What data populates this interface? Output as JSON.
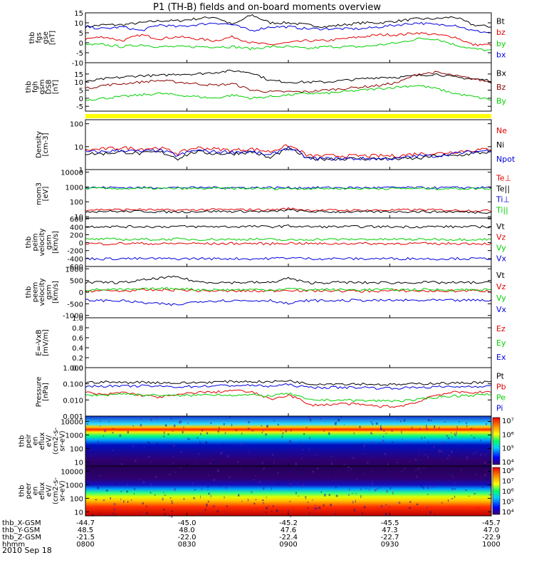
{
  "title": "P1 (TH-B) fields and on-board moments overview",
  "date": "2010 Sep 18",
  "colors": {
    "black": "#000000",
    "red": "#e00000",
    "green": "#00d000",
    "blue": "#0000dd",
    "darkred": "#8b0000",
    "yellow": "#ffff00"
  },
  "chart_data": [
    {
      "id": "fgs",
      "type": "line",
      "ylabel": [
        "thb",
        "fgs",
        "gse",
        "[nT]"
      ],
      "ylim": [
        -10,
        15
      ],
      "yticks": [
        -10,
        -5,
        0,
        5,
        10,
        15
      ],
      "legend": [
        {
          "name": "Bt",
          "color": "black"
        },
        {
          "name": "bz",
          "color": "red"
        },
        {
          "name": "by",
          "color": "green"
        },
        {
          "name": "bx",
          "color": "blue"
        }
      ],
      "series": [
        {
          "name": "Bt",
          "color": "black",
          "values": [
            8,
            9,
            9,
            10,
            11,
            11,
            12,
            13,
            9,
            14,
            10,
            10,
            9,
            8,
            9,
            10,
            10,
            11,
            12,
            12,
            13,
            9,
            8
          ]
        },
        {
          "name": "bz",
          "color": "red",
          "values": [
            2,
            3,
            1,
            4,
            2,
            3,
            2,
            1,
            3,
            0,
            -1,
            0,
            1,
            1,
            2,
            3,
            4,
            4,
            5,
            4,
            3,
            -1,
            -1
          ]
        },
        {
          "name": "by",
          "color": "green",
          "values": [
            -1,
            -1,
            -2,
            -1,
            -2,
            -2,
            -2,
            -2,
            -2,
            -3,
            -2,
            -2,
            -3,
            -2,
            -2,
            -2,
            -1,
            0,
            2,
            2,
            -1,
            -3,
            -4
          ]
        },
        {
          "name": "bx",
          "color": "blue",
          "values": [
            8,
            7,
            8,
            6,
            9,
            8,
            9,
            10,
            9,
            6,
            8,
            8,
            7,
            7,
            7,
            7,
            8,
            9,
            10,
            9,
            9,
            6,
            5
          ]
        }
      ]
    },
    {
      "id": "fgh",
      "type": "line",
      "ylabel": [
        "thb",
        "fgh",
        "gsm",
        "DSB",
        "[nT]"
      ],
      "ylim": [
        -8,
        22
      ],
      "yticks": [
        -5,
        0,
        5,
        10,
        15
      ],
      "legend": [
        {
          "name": "Bx",
          "color": "black"
        },
        {
          "name": "Bz",
          "color": "darkred"
        },
        {
          "name": "By",
          "color": "green"
        }
      ],
      "series": [
        {
          "name": "Bx",
          "color": "black",
          "values": [
            10,
            12,
            13,
            14,
            14,
            15,
            15,
            16,
            17,
            16,
            11,
            10,
            10,
            10,
            11,
            12,
            13,
            13,
            14,
            15,
            13,
            12,
            11
          ]
        },
        {
          "name": "Bz",
          "color": "darkred",
          "values": [
            6,
            8,
            9,
            10,
            11,
            10,
            9,
            8,
            9,
            5,
            4,
            4,
            4,
            5,
            6,
            7,
            8,
            10,
            15,
            16,
            14,
            12,
            10
          ]
        },
        {
          "name": "By",
          "color": "green",
          "values": [
            -1,
            0,
            1,
            2,
            3,
            2,
            1,
            0,
            2,
            0,
            1,
            2,
            3,
            3,
            4,
            5,
            6,
            7,
            8,
            6,
            3,
            1,
            -1
          ]
        }
      ]
    },
    {
      "id": "density",
      "type": "line",
      "scale": "log",
      "ylabel": [
        "Density",
        "[cm-3]"
      ],
      "ylim": [
        1,
        150
      ],
      "yticks": [
        1,
        10,
        100
      ],
      "ytick_labels": [
        "1",
        "10",
        "100"
      ],
      "legend": [
        {
          "name": "Ne",
          "color": "red"
        },
        {
          "name": "Ni",
          "color": "black"
        },
        {
          "name": "Npot",
          "color": "blue"
        }
      ],
      "series": [
        {
          "name": "Ne",
          "color": "red",
          "values": [
            7,
            8,
            9,
            8,
            9,
            5,
            9,
            8,
            7,
            8,
            6,
            11,
            4,
            4,
            4,
            4,
            4,
            4,
            5,
            5,
            6,
            7,
            8
          ]
        },
        {
          "name": "Ni",
          "color": "black",
          "values": [
            5,
            5,
            6,
            5,
            6,
            3,
            6,
            5,
            5,
            6,
            3,
            8,
            3,
            3,
            3,
            3,
            3,
            3,
            3,
            4,
            4,
            5,
            6
          ]
        },
        {
          "name": "Npot",
          "color": "blue",
          "values": [
            6,
            6,
            7,
            6,
            7,
            4,
            7,
            6,
            6,
            6,
            4,
            9,
            3,
            3,
            3,
            3,
            3,
            3,
            4,
            4,
            5,
            6,
            7
          ]
        }
      ]
    },
    {
      "id": "temp",
      "type": "line",
      "scale": "log",
      "ylabel": [
        "mom3",
        "[eV]"
      ],
      "ylim": [
        8,
        15000
      ],
      "yticks": [
        10,
        100,
        1000,
        10000
      ],
      "ytick_labels": [
        "10",
        "100",
        "1000",
        "10000"
      ],
      "legend": [
        {
          "name": "Te⊥",
          "color": "red"
        },
        {
          "name": "Te||",
          "color": "black"
        },
        {
          "name": "Ti⊥",
          "color": "blue"
        },
        {
          "name": "Ti||",
          "color": "green"
        }
      ],
      "series": [
        {
          "name": "Te⊥",
          "color": "red",
          "values": [
            28,
            30,
            29,
            30,
            28,
            27,
            29,
            30,
            29,
            30,
            28,
            35,
            28,
            27,
            27,
            27,
            27,
            28,
            29,
            28,
            27,
            26,
            25
          ]
        },
        {
          "name": "Te||",
          "color": "black",
          "values": [
            22,
            23,
            22,
            23,
            21,
            21,
            22,
            23,
            22,
            23,
            21,
            28,
            22,
            21,
            21,
            21,
            21,
            22,
            22,
            21,
            21,
            20,
            20
          ]
        },
        {
          "name": "Ti⊥",
          "color": "blue",
          "values": [
            900,
            920,
            910,
            900,
            920,
            910,
            900,
            930,
            910,
            900,
            920,
            900,
            900,
            910,
            900,
            890,
            900,
            910,
            900,
            890,
            900,
            910,
            900
          ]
        },
        {
          "name": "Ti||",
          "color": "green",
          "values": [
            800,
            810,
            790,
            800,
            780,
            800,
            790,
            800,
            810,
            800,
            790,
            800,
            790,
            800,
            790,
            780,
            800,
            790,
            800,
            790,
            780,
            790,
            800
          ]
        }
      ]
    },
    {
      "id": "peim",
      "type": "line",
      "ylabel": [
        "thb",
        "peim",
        "velocity",
        "gsm",
        "[km/s]"
      ],
      "ylim": [
        -600,
        620
      ],
      "yticks": [
        -600,
        -400,
        -200,
        0,
        200,
        400,
        600
      ],
      "legend": [
        {
          "name": "Vt",
          "color": "black"
        },
        {
          "name": "Vz",
          "color": "red"
        },
        {
          "name": "Vy",
          "color": "green"
        },
        {
          "name": "Vx",
          "color": "blue"
        }
      ],
      "series": [
        {
          "name": "Vt",
          "color": "black",
          "values": [
            400,
            410,
            400,
            405,
            400,
            410,
            400,
            405,
            400,
            410,
            400,
            420,
            400,
            400,
            400,
            405,
            400,
            400,
            400,
            405,
            400,
            400,
            400
          ]
        },
        {
          "name": "Vz",
          "color": "red",
          "values": [
            -20,
            -30,
            -20,
            -20,
            -30,
            -20,
            -20,
            -30,
            -20,
            -20,
            -30,
            -10,
            -20,
            -30,
            -20,
            -20,
            -30,
            -20,
            -20,
            -30,
            -20,
            -20,
            -30
          ]
        },
        {
          "name": "Vy",
          "color": "green",
          "values": [
            80,
            90,
            80,
            85,
            80,
            90,
            80,
            85,
            80,
            90,
            80,
            60,
            80,
            85,
            80,
            90,
            80,
            85,
            80,
            90,
            80,
            85,
            80
          ]
        },
        {
          "name": "Vx",
          "color": "blue",
          "values": [
            -400,
            -410,
            -400,
            -405,
            -400,
            -410,
            -400,
            -405,
            -400,
            -410,
            -400,
            -380,
            -400,
            -405,
            -400,
            -410,
            -400,
            -405,
            -400,
            -410,
            -400,
            -405,
            -400
          ]
        }
      ]
    },
    {
      "id": "peem",
      "type": "line",
      "ylabel": [
        "thb",
        "peem",
        "velocity",
        "gsm",
        "[km/s]"
      ],
      "ylim": [
        -1100,
        1100
      ],
      "yticks": [
        -1000,
        -500,
        0,
        500,
        1000
      ],
      "legend": [
        {
          "name": "Vt",
          "color": "black"
        },
        {
          "name": "Vz",
          "color": "red"
        },
        {
          "name": "Vy",
          "color": "green"
        },
        {
          "name": "Vx",
          "color": "blue"
        }
      ],
      "series": [
        {
          "name": "Vt",
          "color": "black",
          "values": [
            400,
            420,
            410,
            500,
            600,
            650,
            450,
            420,
            410,
            420,
            400,
            600,
            400,
            410,
            420,
            400,
            410,
            400,
            420,
            410,
            400,
            410,
            400
          ]
        },
        {
          "name": "Vz",
          "color": "red",
          "values": [
            50,
            60,
            50,
            80,
            90,
            100,
            60,
            50,
            40,
            50,
            40,
            100,
            50,
            60,
            50,
            40,
            50,
            60,
            50,
            40,
            50,
            60,
            50
          ]
        },
        {
          "name": "Vy",
          "color": "green",
          "values": [
            100,
            110,
            100,
            120,
            150,
            160,
            110,
            100,
            100,
            110,
            100,
            150,
            100,
            110,
            100,
            100,
            110,
            100,
            110,
            100,
            100,
            110,
            100
          ]
        },
        {
          "name": "Vx",
          "color": "blue",
          "values": [
            -350,
            -360,
            -370,
            -450,
            -500,
            -550,
            -400,
            -370,
            -360,
            -370,
            -350,
            -500,
            -360,
            -370,
            -360,
            -350,
            -360,
            -350,
            -360,
            -350,
            -360,
            -350,
            -360
          ]
        }
      ]
    },
    {
      "id": "efield",
      "type": "line",
      "ylabel": [
        "E=-VxB",
        "[mV/m]"
      ],
      "ylim": [
        0,
        1
      ],
      "yticks": [
        0.0,
        0.2,
        0.4,
        0.6,
        0.8,
        1.0
      ],
      "ytick_labels": [
        "0.0",
        "0.2",
        "0.4",
        "0.6",
        "0.8",
        "1.0"
      ],
      "legend": [
        {
          "name": "Ez",
          "color": "red"
        },
        {
          "name": "Ey",
          "color": "green"
        },
        {
          "name": "Ex",
          "color": "blue"
        }
      ],
      "series": []
    },
    {
      "id": "pressure",
      "type": "line",
      "scale": "log",
      "ylabel": [
        "Pressure",
        "[nPa]"
      ],
      "ylim": [
        0.001,
        1
      ],
      "yticks": [
        0.001,
        0.01,
        0.1,
        1
      ],
      "ytick_labels": [
        "0.001",
        "0.010",
        "0.100",
        "1.000"
      ],
      "legend": [
        {
          "name": "Pt",
          "color": "black"
        },
        {
          "name": "Pb",
          "color": "red"
        },
        {
          "name": "Pe",
          "color": "green"
        },
        {
          "name": "Pi",
          "color": "blue"
        }
      ],
      "series": [
        {
          "name": "Pt",
          "color": "black",
          "values": [
            0.12,
            0.13,
            0.12,
            0.13,
            0.12,
            0.11,
            0.12,
            0.13,
            0.14,
            0.14,
            0.13,
            0.16,
            0.1,
            0.1,
            0.1,
            0.1,
            0.09,
            0.09,
            0.1,
            0.11,
            0.11,
            0.12,
            0.13
          ]
        },
        {
          "name": "Pb",
          "color": "red",
          "values": [
            0.03,
            0.02,
            0.03,
            0.02,
            0.015,
            0.02,
            0.03,
            0.03,
            0.04,
            0.03,
            0.01,
            0.02,
            0.005,
            0.005,
            0.006,
            0.005,
            0.004,
            0.004,
            0.007,
            0.02,
            0.03,
            0.03,
            0.03
          ]
        },
        {
          "name": "Pe",
          "color": "green",
          "values": [
            0.02,
            0.02,
            0.025,
            0.02,
            0.02,
            0.018,
            0.02,
            0.022,
            0.02,
            0.02,
            0.018,
            0.025,
            0.01,
            0.01,
            0.01,
            0.009,
            0.009,
            0.009,
            0.01,
            0.015,
            0.018,
            0.02,
            0.022
          ]
        },
        {
          "name": "Pi",
          "color": "blue",
          "values": [
            0.07,
            0.075,
            0.07,
            0.075,
            0.07,
            0.065,
            0.07,
            0.075,
            0.08,
            0.08,
            0.07,
            0.09,
            0.06,
            0.06,
            0.06,
            0.06,
            0.055,
            0.055,
            0.06,
            0.065,
            0.065,
            0.07,
            0.075
          ]
        }
      ]
    },
    {
      "id": "peir",
      "type": "heatmap",
      "ylabel": [
        "thb",
        "peir",
        "en",
        "eflux",
        "eV/",
        "(cm2-s-",
        "sr-eV)"
      ],
      "ylim": [
        5,
        25000
      ],
      "yticks": [
        10,
        100,
        1000,
        10000
      ],
      "ytick_labels": [
        "10",
        "100",
        "1000",
        "10000"
      ],
      "colorbar_ticks": [
        "10⁴",
        "10⁵",
        "10⁶",
        "10⁷"
      ]
    },
    {
      "id": "peer",
      "type": "heatmap",
      "ylabel": [
        "thb",
        "peer",
        "en",
        "eflux",
        "eV/",
        "(cm2-s-",
        "sr-eV)"
      ],
      "ylim": [
        5,
        25000
      ],
      "yticks": [
        10,
        100,
        1000,
        10000
      ],
      "ytick_labels": [
        "10",
        "100",
        "1000",
        "10000"
      ],
      "colorbar_ticks": [
        "10⁴",
        "10⁵",
        "10⁶",
        "10⁷",
        "10⁸"
      ]
    }
  ],
  "x_axis": {
    "ticks_count": 5,
    "rows": [
      {
        "label": "thb_X-GSM",
        "values": [
          "-44.7",
          "-45.0",
          "-45.2",
          "-45.5",
          "-45.7"
        ]
      },
      {
        "label": "thb_Y-GSM",
        "values": [
          "48.5",
          "48.0",
          "47.6",
          "47.3",
          "47.0"
        ]
      },
      {
        "label": "thb_Z-GSM",
        "values": [
          "-21.5",
          "-22.0",
          "-22.4",
          "-22.7",
          "-22.9"
        ]
      },
      {
        "label": "hhmm",
        "values": [
          "0800",
          "0830",
          "0900",
          "0930",
          "1000"
        ]
      }
    ]
  }
}
